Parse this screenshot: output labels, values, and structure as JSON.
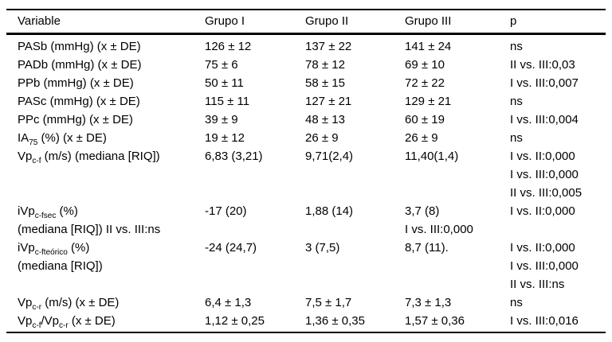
{
  "colors": {
    "text": "#000000",
    "rule": "#000000",
    "background": "#ffffff"
  },
  "table": {
    "columns": [
      "Variable",
      "Grupo I",
      "Grupo II",
      "Grupo III",
      "p"
    ],
    "subscript_marker": "~",
    "rows": [
      {
        "variable": [
          "PASb (mmHg) (x ± DE)"
        ],
        "grupo1": [
          "126 ± 12"
        ],
        "grupo2": [
          "137 ± 22"
        ],
        "grupo3": [
          "141 ± 24"
        ],
        "p": [
          "ns"
        ]
      },
      {
        "variable": [
          "PADb (mmHg) (x ± DE)"
        ],
        "grupo1": [
          "75 ± 6"
        ],
        "grupo2": [
          "78 ± 12"
        ],
        "grupo3": [
          "69 ± 10"
        ],
        "p": [
          "II vs. III:0,03"
        ]
      },
      {
        "variable": [
          "PPb (mmHg) (x ± DE)"
        ],
        "grupo1": [
          "50 ± 11"
        ],
        "grupo2": [
          "58 ± 15"
        ],
        "grupo3": [
          "72 ± 22"
        ],
        "p": [
          "I vs. III:0,007"
        ]
      },
      {
        "variable": [
          "PASc (mmHg) (x ± DE)"
        ],
        "grupo1": [
          "115 ± 11"
        ],
        "grupo2": [
          "127 ± 21"
        ],
        "grupo3": [
          "129 ± 21"
        ],
        "p": [
          "ns"
        ]
      },
      {
        "variable": [
          "PPc (mmHg) (x ± DE)"
        ],
        "grupo1": [
          "39 ± 9"
        ],
        "grupo2": [
          "48 ± 13"
        ],
        "grupo3": [
          "60 ± 19"
        ],
        "p": [
          "I vs. III:0,004"
        ]
      },
      {
        "variable": [
          "IA~75~ (%) (x ± DE)"
        ],
        "grupo1": [
          "19 ± 12"
        ],
        "grupo2": [
          "26 ± 9"
        ],
        "grupo3": [
          "26 ± 9"
        ],
        "p": [
          "ns"
        ]
      },
      {
        "variable": [
          "Vp~c-f~ (m/s) (mediana [RIQ])"
        ],
        "grupo1": [
          "6,83 (3,21)"
        ],
        "grupo2": [
          "9,71(2,4)"
        ],
        "grupo3": [
          "11,40(1,4)"
        ],
        "p": [
          "I vs. II:0,000",
          "I vs. III:0,000",
          "II vs. III:0,005"
        ]
      },
      {
        "variable": [
          "iVp~c-fsec~ (%)",
          "(mediana [RIQ]) II vs. III:ns"
        ],
        "grupo1": [
          "-17 (20)"
        ],
        "grupo2": [
          "1,88 (14)"
        ],
        "grupo3": [
          "3,7 (8)",
          "I vs. III:0,000"
        ],
        "p": [
          "I vs. II:0,000"
        ]
      },
      {
        "variable": [
          "iVp~c-fteórico~ (%)",
          "(mediana [RIQ])"
        ],
        "grupo1": [
          "-24 (24,7)"
        ],
        "grupo2": [
          "3 (7,5)"
        ],
        "grupo3": [
          "8,7 (11)."
        ],
        "p": [
          "I vs. II:0,000",
          "I vs. III:0,000",
          "II vs. III:ns"
        ]
      },
      {
        "variable": [
          "Vp~c-r~ (m/s) (x ± DE)"
        ],
        "grupo1": [
          "6,4 ± 1,3"
        ],
        "grupo2": [
          "7,5 ± 1,7"
        ],
        "grupo3": [
          "7,3 ± 1,3"
        ],
        "p": [
          "ns"
        ]
      },
      {
        "variable": [
          "Vp~c-f~/Vp~c-r~ (x ± DE)"
        ],
        "grupo1": [
          "1,12 ± 0,25"
        ],
        "grupo2": [
          "1,36 ± 0,35"
        ],
        "grupo3": [
          "1,57 ± 0,36"
        ],
        "p": [
          "I vs. III:0,016"
        ]
      }
    ]
  }
}
